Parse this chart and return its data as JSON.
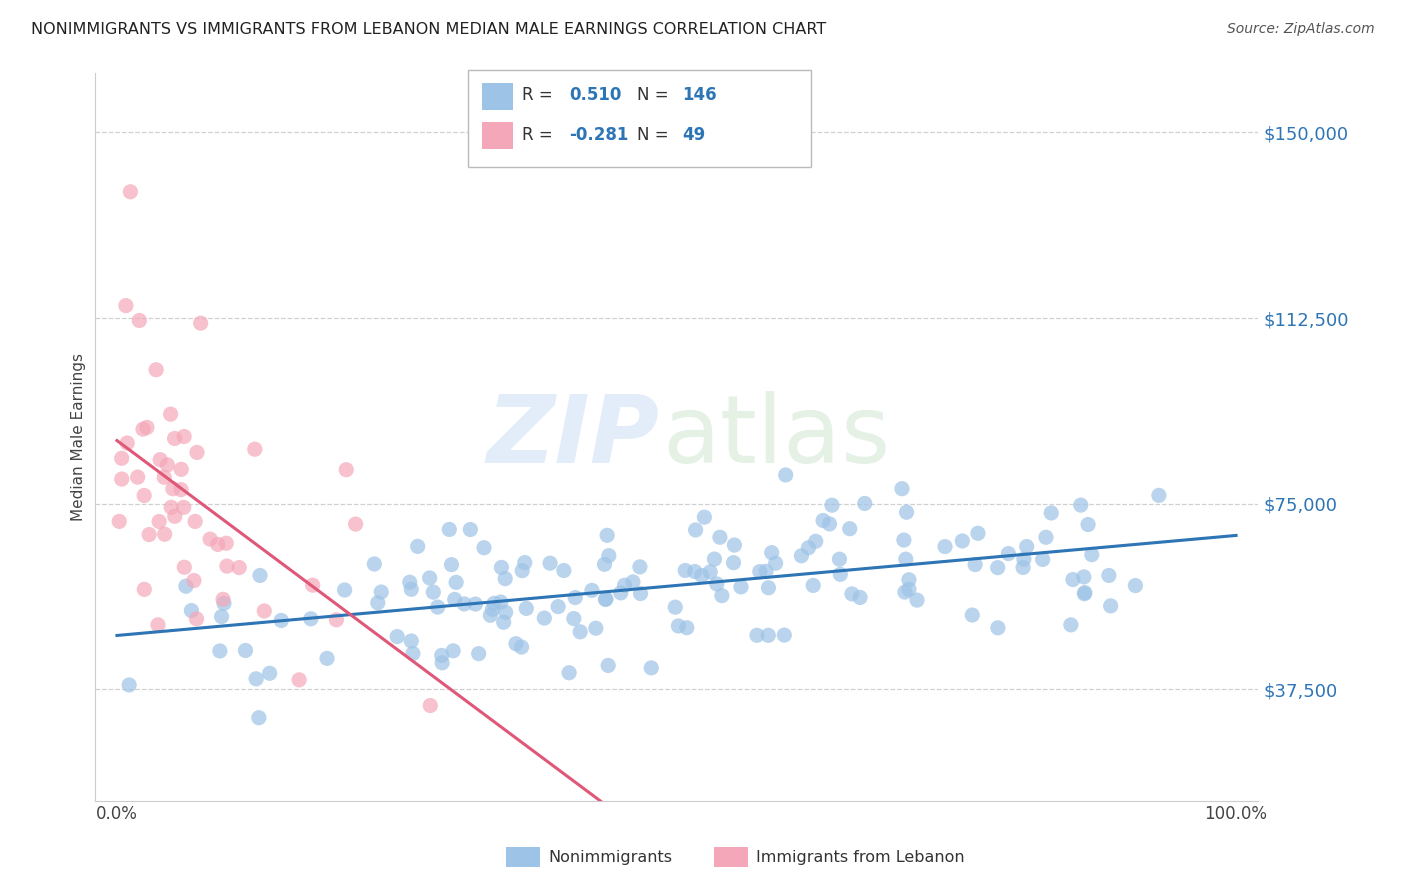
{
  "title": "NONIMMIGRANTS VS IMMIGRANTS FROM LEBANON MEDIAN MALE EARNINGS CORRELATION CHART",
  "source": "Source: ZipAtlas.com",
  "ylabel": "Median Male Earnings",
  "ytick_labels": [
    "$37,500",
    "$75,000",
    "$112,500",
    "$150,000"
  ],
  "ytick_values": [
    37500,
    75000,
    112500,
    150000
  ],
  "ymin": 15000,
  "ymax": 162000,
  "xmin": -0.02,
  "xmax": 1.02,
  "r_nonimm": 0.51,
  "n_nonimm": 146,
  "r_imm": -0.281,
  "n_imm": 49,
  "color_nonimm": "#9dc3e6",
  "color_imm": "#f4a7b9",
  "line_color_nonimm": "#2e75b6",
  "line_color_imm": "#e05878",
  "line_color_dashed": "#d0d0d0",
  "title_color": "#222222",
  "source_color": "#555555",
  "ytick_color": "#2e75b6",
  "grid_color": "#d0d0d0",
  "background_color": "#ffffff",
  "legend_r_color": "#333333",
  "legend_n_color": "#2e75b6"
}
